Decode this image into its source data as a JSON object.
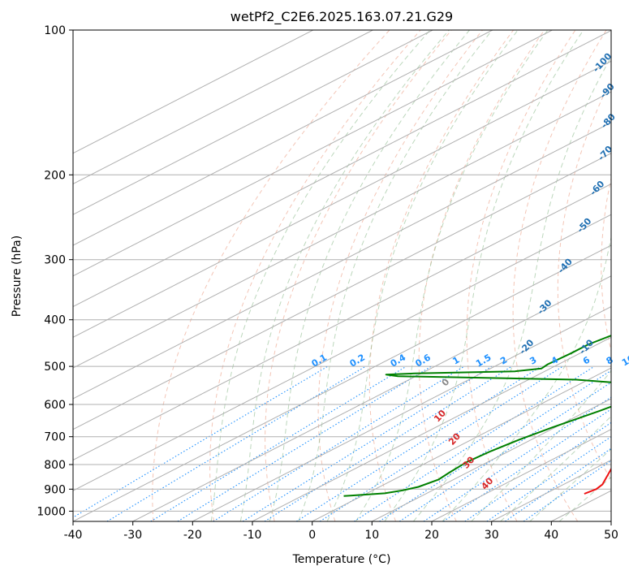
{
  "chart_data": {
    "type": "line",
    "title": "wetPf2_C2E6.2025.163.07.21.G29",
    "xlabel": "Temperature (°C)",
    "ylabel": "Pressure (hPa)",
    "xlim": [
      -40,
      50
    ],
    "ylim": [
      1050,
      100
    ],
    "y_scale": "log",
    "grid": true,
    "x_ticks": [
      -40,
      -30,
      -20,
      -10,
      0,
      10,
      20,
      30,
      40,
      50
    ],
    "y_ticks": [
      100,
      200,
      300,
      400,
      500,
      600,
      700,
      800,
      900,
      1000
    ],
    "colors": {
      "temperature": "#ee1111",
      "dewpoint": "#008000",
      "dry_adiabat": "#e9967a",
      "moist_adiabat": "#8fbc8f",
      "mixing_ratio": "#1e90ff",
      "isotherm_label": "#1f6fb2",
      "red_label": "#d62728",
      "grid": "#b0b0b0"
    },
    "series": [
      {
        "name": "temperature",
        "points": [
          [
            36.5,
            920
          ],
          [
            37.0,
            900
          ],
          [
            36.5,
            880
          ],
          [
            32.5,
            810
          ],
          [
            24.0,
            680
          ],
          [
            18.5,
            590
          ],
          [
            18.0,
            570
          ],
          [
            19.5,
            545
          ],
          [
            20.0,
            520
          ],
          [
            19.2,
            505
          ],
          [
            17.5,
            470
          ],
          [
            15.0,
            420
          ],
          [
            9.0,
            330
          ],
          [
            4.0,
            270
          ],
          [
            -1.0,
            220
          ],
          [
            -2.5,
            200
          ],
          [
            -3.5,
            175
          ],
          [
            -6.0,
            150
          ],
          [
            -9.5,
            125
          ],
          [
            -12.0,
            110
          ],
          [
            -14.5,
            100
          ]
        ]
      },
      {
        "name": "dewpoint",
        "points": [
          [
            -3.0,
            930
          ],
          [
            -2.0,
            928
          ],
          [
            3.0,
            918
          ],
          [
            5.0,
            905
          ],
          [
            6.5,
            890
          ],
          [
            7.5,
            860
          ],
          [
            7.0,
            830
          ],
          [
            6.5,
            790
          ],
          [
            7.0,
            750
          ],
          [
            8.0,
            710
          ],
          [
            9.5,
            670
          ],
          [
            12.0,
            620
          ],
          [
            14.0,
            575
          ],
          [
            13.5,
            562
          ],
          [
            10.0,
            545
          ],
          [
            -2.0,
            533
          ],
          [
            -33.0,
            524
          ],
          [
            -35.5,
            520
          ],
          [
            -31.0,
            517
          ],
          [
            -15.0,
            512
          ],
          [
            -11.5,
            505
          ],
          [
            -11.8,
            495
          ],
          [
            -11.5,
            470
          ],
          [
            -11.5,
            450
          ],
          [
            -10.5,
            430
          ],
          [
            -11.5,
            410
          ],
          [
            -12.5,
            400
          ],
          [
            -10.5,
            385
          ],
          [
            -8.0,
            360
          ],
          [
            -7.0,
            340
          ],
          [
            -4.5,
            330
          ],
          [
            3.0,
            320
          ],
          [
            5.5,
            305
          ],
          [
            6.0,
            290
          ],
          [
            3.0,
            245
          ],
          [
            -3.0,
            200
          ],
          [
            -7.0,
            175
          ],
          [
            -10.0,
            155
          ],
          [
            -11.5,
            145
          ],
          [
            -11.0,
            130
          ],
          [
            -13.5,
            122
          ],
          [
            -15.0,
            115
          ],
          [
            -14.5,
            108
          ],
          [
            -12.5,
            100
          ]
        ]
      }
    ],
    "isotherm_labels": [
      "-100",
      "-90",
      "-80",
      "-70",
      "-60",
      "-50",
      "-40",
      "-30",
      "-20",
      "-10"
    ],
    "mixing_ratio_labels": [
      "0.1",
      "0.2",
      "0.4",
      "0.6",
      "1",
      "1.5",
      "2",
      "3",
      "4",
      "6",
      "8",
      "10",
      "13",
      "16",
      "20",
      "25",
      "30",
      "36"
    ],
    "red_labels": [
      "0",
      "10",
      "20",
      "30",
      "40"
    ]
  }
}
